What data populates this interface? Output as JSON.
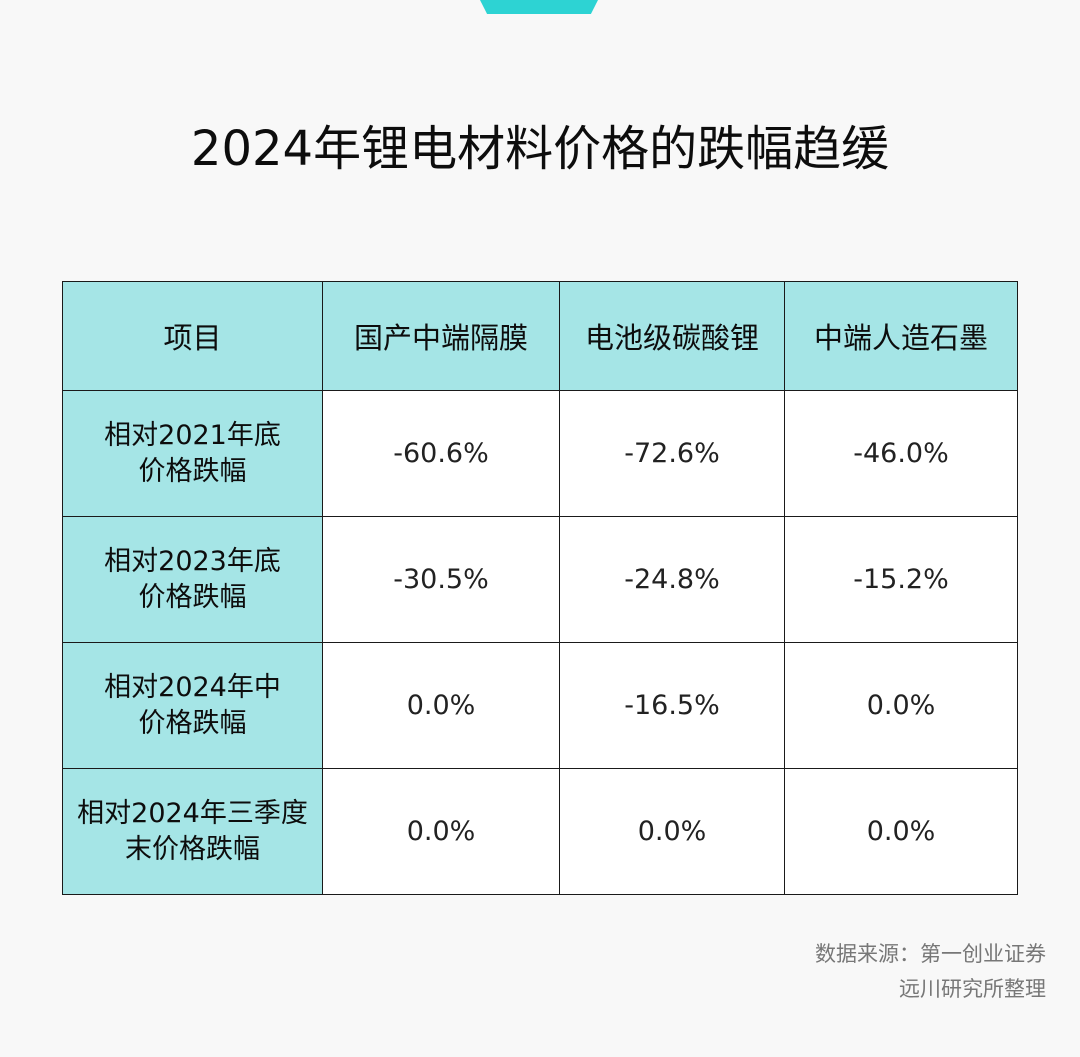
{
  "title": "2024年锂电材料价格的跌幅趋缓",
  "colors": {
    "accent": "#2dd3d3",
    "header_bg": "#a5e5e6",
    "background": "#f8f8f8"
  },
  "chart_data": {
    "type": "table",
    "title": "2024年锂电材料价格的跌幅趋缓",
    "columns": [
      "项目",
      "国产中端隔膜",
      "电池级碳酸锂",
      "中端人造石墨"
    ],
    "rows": [
      {
        "label": "相对2021年底\n价格跌幅",
        "values": [
          "-60.6%",
          "-72.6%",
          "-46.0%"
        ]
      },
      {
        "label": "相对2023年底\n价格跌幅",
        "values": [
          "-30.5%",
          "-24.8%",
          "-15.2%"
        ]
      },
      {
        "label": "相对2024年中\n价格跌幅",
        "values": [
          "0.0%",
          "-16.5%",
          "0.0%"
        ]
      },
      {
        "label": "相对2024年三季度\n末价格跌幅",
        "values": [
          "0.0%",
          "0.0%",
          "0.0%"
        ]
      }
    ]
  },
  "source": {
    "line1": "数据来源：第一创业证券",
    "line2": "远川研究所整理"
  }
}
